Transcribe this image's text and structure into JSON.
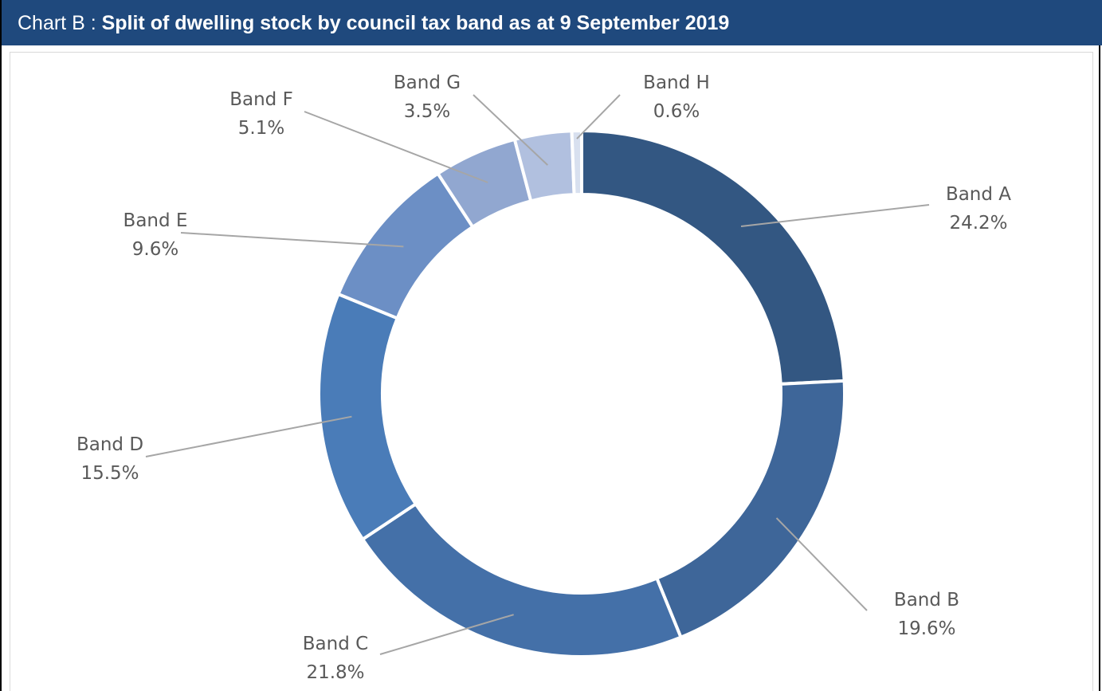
{
  "header": {
    "prefix": "Chart B : ",
    "title": "Split of dwelling stock by council tax band as at 9 September 2019",
    "background_color": "#1f497d"
  },
  "chart_data": {
    "type": "pie",
    "variant": "doughnut",
    "title": "Split of dwelling stock by council tax band as at 9 September 2019",
    "categories": [
      "Band A",
      "Band B",
      "Band C",
      "Band D",
      "Band E",
      "Band F",
      "Band G",
      "Band H"
    ],
    "values": [
      24.2,
      19.6,
      21.8,
      15.5,
      9.6,
      5.1,
      3.5,
      0.6
    ],
    "value_labels": [
      "24.2%",
      "19.6%",
      "21.8%",
      "15.5%",
      "9.6%",
      "5.1%",
      "3.5%",
      "0.6%"
    ],
    "colors": [
      "#335782",
      "#3e6699",
      "#4470a8",
      "#4a7cb8",
      "#6c8fc5",
      "#91a7d0",
      "#b1c0df",
      "#d8e0ef"
    ],
    "start_angle_degrees": 0,
    "direction": "clockwise",
    "legend": "none",
    "data_labels": "outside with leader lines"
  }
}
